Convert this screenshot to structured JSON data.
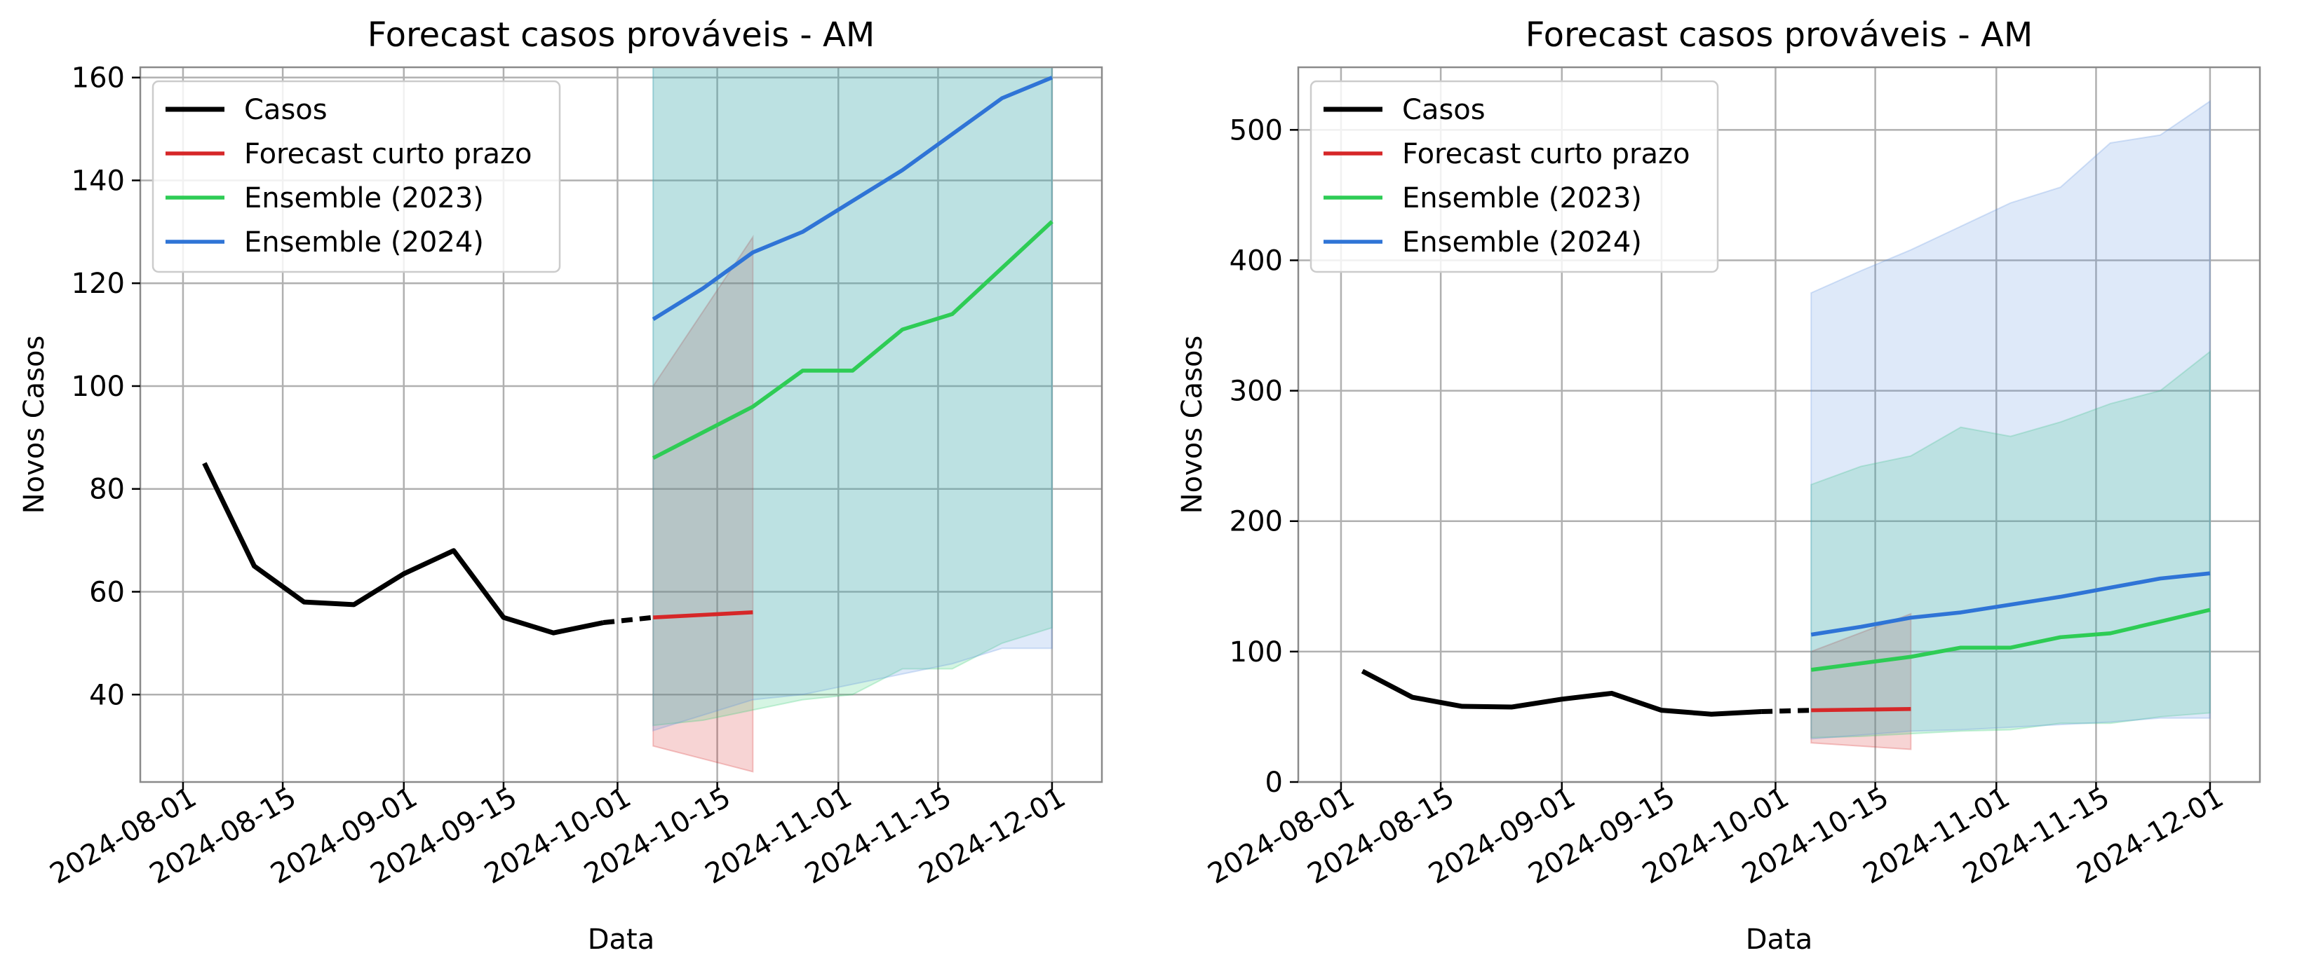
{
  "chart_data": [
    {
      "type": "line",
      "title": "Forecast casos prováveis - AM",
      "xlabel": "Data",
      "ylabel": "Novos Casos",
      "xlim": [
        "2024-07-26",
        "2024-12-08"
      ],
      "ylim": [
        23,
        162
      ],
      "yticks": [
        40,
        60,
        80,
        100,
        120,
        140,
        160
      ],
      "xticks": [
        "2024-08-01",
        "2024-08-15",
        "2024-09-01",
        "2024-09-15",
        "2024-10-01",
        "2024-10-15",
        "2024-11-01",
        "2024-11-15",
        "2024-12-01"
      ],
      "grid": true,
      "legend": "top-left",
      "bands": [
        {
          "color": "#d62728",
          "dates": [
            "2024-10-06",
            "2024-10-20"
          ],
          "lower": [
            30,
            25
          ],
          "upper": [
            100,
            129
          ]
        },
        {
          "color": "#2ecc71",
          "dates": [
            "2024-10-06",
            "2024-10-13",
            "2024-10-20",
            "2024-10-27",
            "2024-11-03",
            "2024-11-10",
            "2024-11-17",
            "2024-11-24",
            "2024-12-01"
          ],
          "lower": [
            34,
            35,
            37,
            39,
            40,
            45,
            45,
            50,
            53
          ],
          "upper": [
            162,
            162,
            162,
            162,
            162,
            162,
            162,
            162,
            162
          ]
        },
        {
          "color": "#5b8fe0",
          "dates": [
            "2024-10-06",
            "2024-10-13",
            "2024-10-20",
            "2024-10-27",
            "2024-11-03",
            "2024-11-10",
            "2024-11-17",
            "2024-11-24",
            "2024-12-01"
          ],
          "lower": [
            33,
            36,
            39,
            40,
            42,
            44,
            46,
            49,
            49
          ],
          "upper": [
            162,
            162,
            162,
            162,
            162,
            162,
            162,
            162,
            162
          ]
        }
      ],
      "series": [
        {
          "name": "Casos",
          "color": "#000000",
          "width": 5,
          "dates": [
            "2024-08-04",
            "2024-08-11",
            "2024-08-18",
            "2024-08-25",
            "2024-09-01",
            "2024-09-08",
            "2024-09-15",
            "2024-09-22",
            "2024-09-29"
          ],
          "values": [
            85,
            65,
            58,
            57.5,
            63.5,
            68,
            55,
            52,
            54
          ]
        },
        {
          "name": "",
          "color": "#000000",
          "width": 5,
          "dash": "16,10",
          "dates": [
            "2024-09-29",
            "2024-10-06"
          ],
          "values": [
            54,
            55
          ]
        },
        {
          "name": "Forecast curto prazo",
          "color": "#d62728",
          "width": 4,
          "dates": [
            "2024-10-06",
            "2024-10-20"
          ],
          "values": [
            55,
            56
          ]
        },
        {
          "name": "Ensemble (2023)",
          "color": "#2ecc55",
          "width": 4,
          "dates": [
            "2024-10-06",
            "2024-10-13",
            "2024-10-20",
            "2024-10-27",
            "2024-11-03",
            "2024-11-10",
            "2024-11-17",
            "2024-11-24",
            "2024-12-01"
          ],
          "values": [
            86,
            91,
            96,
            103,
            103,
            111,
            114,
            123,
            132
          ]
        },
        {
          "name": "Ensemble (2024)",
          "color": "#2f74d6",
          "width": 4,
          "dates": [
            "2024-10-06",
            "2024-10-13",
            "2024-10-20",
            "2024-10-27",
            "2024-11-03",
            "2024-11-10",
            "2024-11-17",
            "2024-11-24",
            "2024-12-01"
          ],
          "values": [
            113,
            119,
            126,
            130,
            136,
            142,
            149,
            156,
            160
          ]
        }
      ]
    },
    {
      "type": "line",
      "title": "Forecast casos prováveis - AM",
      "xlabel": "Data",
      "ylabel": "Novos Casos",
      "xlim": [
        "2024-07-26",
        "2024-12-08"
      ],
      "ylim": [
        0,
        548
      ],
      "yticks": [
        0,
        100,
        200,
        300,
        400,
        500
      ],
      "xticks": [
        "2024-08-01",
        "2024-08-15",
        "2024-09-01",
        "2024-09-15",
        "2024-10-01",
        "2024-10-15",
        "2024-11-01",
        "2024-11-15",
        "2024-12-01"
      ],
      "grid": true,
      "legend": "top-left",
      "bands": [
        {
          "color": "#d62728",
          "dates": [
            "2024-10-06",
            "2024-10-20"
          ],
          "lower": [
            30,
            25
          ],
          "upper": [
            100,
            129
          ]
        },
        {
          "color": "#2ecc71",
          "dates": [
            "2024-10-06",
            "2024-10-13",
            "2024-10-20",
            "2024-10-27",
            "2024-11-03",
            "2024-11-10",
            "2024-11-17",
            "2024-11-24",
            "2024-12-01"
          ],
          "lower": [
            34,
            35,
            37,
            39,
            40,
            45,
            45,
            50,
            53
          ],
          "upper": [
            228,
            242,
            250,
            272,
            265,
            276,
            290,
            300,
            330
          ]
        },
        {
          "color": "#5b8fe0",
          "dates": [
            "2024-10-06",
            "2024-10-13",
            "2024-10-20",
            "2024-10-27",
            "2024-11-03",
            "2024-11-10",
            "2024-11-17",
            "2024-11-24",
            "2024-12-01"
          ],
          "lower": [
            33,
            36,
            39,
            40,
            42,
            44,
            46,
            49,
            49
          ],
          "upper": [
            375,
            392,
            408,
            426,
            444,
            456,
            490,
            496,
            522
          ]
        }
      ],
      "series": [
        {
          "name": "Casos",
          "color": "#000000",
          "width": 5,
          "dates": [
            "2024-08-04",
            "2024-08-11",
            "2024-08-18",
            "2024-08-25",
            "2024-09-01",
            "2024-09-08",
            "2024-09-15",
            "2024-09-22",
            "2024-09-29"
          ],
          "values": [
            85,
            65,
            58,
            57.5,
            63.5,
            68,
            55,
            52,
            54
          ]
        },
        {
          "name": "",
          "color": "#000000",
          "width": 5,
          "dash": "16,10",
          "dates": [
            "2024-09-29",
            "2024-10-06"
          ],
          "values": [
            54,
            55
          ]
        },
        {
          "name": "Forecast curto prazo",
          "color": "#d62728",
          "width": 4,
          "dates": [
            "2024-10-06",
            "2024-10-20"
          ],
          "values": [
            55,
            56
          ]
        },
        {
          "name": "Ensemble (2023)",
          "color": "#2ecc55",
          "width": 4,
          "dates": [
            "2024-10-06",
            "2024-10-13",
            "2024-10-20",
            "2024-10-27",
            "2024-11-03",
            "2024-11-10",
            "2024-11-17",
            "2024-11-24",
            "2024-12-01"
          ],
          "values": [
            86,
            91,
            96,
            103,
            103,
            111,
            114,
            123,
            132
          ]
        },
        {
          "name": "Ensemble (2024)",
          "color": "#2f74d6",
          "width": 4,
          "dates": [
            "2024-10-06",
            "2024-10-13",
            "2024-10-20",
            "2024-10-27",
            "2024-11-03",
            "2024-11-10",
            "2024-11-17",
            "2024-11-24",
            "2024-12-01"
          ],
          "values": [
            113,
            119,
            126,
            130,
            136,
            142,
            149,
            156,
            160
          ]
        }
      ]
    }
  ]
}
